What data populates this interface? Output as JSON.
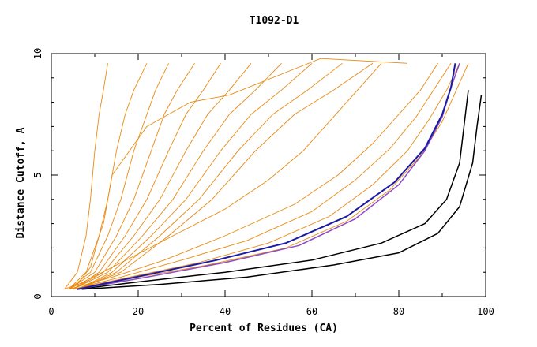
{
  "chart_data": {
    "type": "line",
    "title": "T1092-D1",
    "xlabel": "Percent of Residues (CA)",
    "ylabel": "Distance Cutoff, A",
    "xlim": [
      0,
      100
    ],
    "ylim": [
      0,
      10
    ],
    "x_ticks": [
      0,
      20,
      40,
      60,
      80,
      100
    ],
    "y_ticks": [
      0,
      5,
      10
    ],
    "grid": false,
    "colors": {
      "models": "#e98a12",
      "highlight_black": "#000000",
      "highlight_blue": "#1a1aa6",
      "highlight_purple": "#8a4cc8"
    },
    "series": [
      {
        "x": [
          3,
          6,
          9,
          11,
          12,
          14,
          22,
          32,
          41,
          62,
          72,
          82
        ],
        "y": [
          0.3,
          0.5,
          1.2,
          2.5,
          3,
          5,
          7,
          8,
          8.3,
          9.8,
          9.7,
          9.6
        ]
      },
      {
        "x": [
          3,
          6,
          8,
          9,
          10,
          11,
          12,
          13
        ],
        "y": [
          0.3,
          1,
          2.5,
          4,
          6,
          7.5,
          8.5,
          9.6
        ]
      },
      {
        "x": [
          4,
          8,
          11,
          13,
          15,
          17,
          19,
          22
        ],
        "y": [
          0.3,
          1,
          2.5,
          4,
          6,
          7.5,
          8.5,
          9.6
        ]
      },
      {
        "x": [
          4,
          9,
          13,
          16,
          19,
          22,
          24,
          27
        ],
        "y": [
          0.3,
          1,
          2.5,
          4,
          6,
          7.5,
          8.5,
          9.6
        ]
      },
      {
        "x": [
          4,
          10,
          15,
          19,
          23,
          26,
          29,
          33
        ],
        "y": [
          0.3,
          1,
          2.5,
          4,
          6,
          7.5,
          8.5,
          9.6
        ]
      },
      {
        "x": [
          5,
          11,
          17,
          22,
          27,
          31,
          35,
          39
        ],
        "y": [
          0.3,
          1,
          2.5,
          4,
          6,
          7.5,
          8.5,
          9.6
        ]
      },
      {
        "x": [
          5,
          12,
          19,
          25,
          31,
          36,
          41,
          46
        ],
        "y": [
          0.3,
          1,
          2.5,
          4,
          6,
          7.5,
          8.5,
          9.6
        ]
      },
      {
        "x": [
          5,
          13,
          21,
          28,
          35,
          41,
          47,
          53
        ],
        "y": [
          0.3,
          1,
          2.5,
          4,
          6,
          7.5,
          8.5,
          9.6
        ]
      },
      {
        "x": [
          6,
          14,
          23,
          31,
          39,
          46,
          53,
          60
        ],
        "y": [
          0.3,
          1,
          2.5,
          4,
          6,
          7.5,
          8.5,
          9.6
        ]
      },
      {
        "x": [
          6,
          15,
          25,
          34,
          43,
          51,
          59,
          67
        ],
        "y": [
          0.3,
          1,
          2.5,
          4,
          6,
          7.5,
          8.5,
          9.6
        ]
      },
      {
        "x": [
          6,
          16,
          27,
          37,
          47,
          56,
          65,
          74
        ],
        "y": [
          0.3,
          1,
          2.5,
          4,
          6,
          7.5,
          8.5,
          9.6
        ]
      },
      {
        "x": [
          4,
          14,
          26,
          40,
          56,
          66,
          74,
          80,
          85,
          89
        ],
        "y": [
          0.3,
          0.8,
          1.5,
          2.5,
          3.8,
          5,
          6.3,
          7.5,
          8.5,
          9.6
        ]
      },
      {
        "x": [
          5,
          16,
          30,
          45,
          60,
          70,
          78,
          84,
          88,
          92
        ],
        "y": [
          0.3,
          0.8,
          1.5,
          2.3,
          3.5,
          4.8,
          6.1,
          7.4,
          8.5,
          9.6
        ]
      },
      {
        "x": [
          5,
          18,
          34,
          50,
          64,
          74,
          82,
          87,
          91,
          94
        ],
        "y": [
          0.3,
          0.8,
          1.4,
          2.2,
          3.3,
          4.6,
          6,
          7.3,
          8.5,
          9.6
        ]
      },
      {
        "x": [
          6,
          20,
          36,
          54,
          68,
          78,
          85,
          90,
          93,
          96
        ],
        "y": [
          0.3,
          0.8,
          1.3,
          2,
          3.1,
          4.4,
          5.8,
          7.2,
          8.4,
          9.6
        ]
      },
      {
        "x": [
          4,
          14,
          28,
          40,
          50,
          58,
          64,
          69,
          73,
          76
        ],
        "y": [
          0.3,
          1.2,
          2.5,
          3.6,
          4.8,
          6,
          7.2,
          8.2,
          9,
          9.6
        ]
      },
      {
        "x": [
          6,
          20,
          40,
          60,
          76,
          86,
          91,
          94,
          95,
          96
        ],
        "y": [
          0.3,
          0.6,
          1,
          1.5,
          2.2,
          3,
          4,
          5.5,
          7,
          8.5
        ]
      },
      {
        "x": [
          7,
          25,
          45,
          65,
          80,
          89,
          94,
          97,
          98,
          99
        ],
        "y": [
          0.3,
          0.5,
          0.8,
          1.3,
          1.8,
          2.6,
          3.7,
          5.5,
          7,
          8.3
        ]
      },
      {
        "x": [
          6,
          22,
          40,
          57,
          70,
          80,
          86,
          90,
          92,
          94
        ],
        "y": [
          0.3,
          0.8,
          1.4,
          2.1,
          3.2,
          4.6,
          6,
          7.4,
          8.6,
          9.6
        ]
      },
      {
        "x": [
          6,
          22,
          38,
          54,
          68,
          79,
          86,
          90,
          92,
          93
        ],
        "y": [
          0.3,
          0.9,
          1.5,
          2.2,
          3.3,
          4.7,
          6.1,
          7.5,
          8.6,
          9.6
        ]
      }
    ]
  }
}
